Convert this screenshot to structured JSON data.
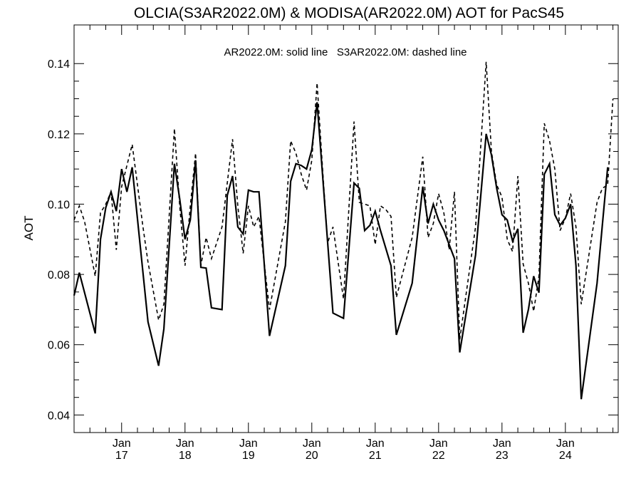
{
  "chart_data": {
    "type": "line",
    "title": "OLCIA(S3AR2022.0M) & MODISA(AR2022.0M)  AOT for PacS45",
    "annotation": "AR2022.0M: solid line   S3AR2022.0M: dashed line",
    "xlabel": "",
    "ylabel": "AOT",
    "ylim": [
      0.035,
      0.151
    ],
    "xlim": [
      "2016-04",
      "2024-11"
    ],
    "y_ticks": [
      "0.04",
      "0.06",
      "0.08",
      "0.10",
      "0.12",
      "0.14"
    ],
    "x_ticks": [
      {
        "top": "Jan",
        "bottom": "17"
      },
      {
        "top": "Jan",
        "bottom": "18"
      },
      {
        "top": "Jan",
        "bottom": "19"
      },
      {
        "top": "Jan",
        "bottom": "20"
      },
      {
        "top": "Jan",
        "bottom": "21"
      },
      {
        "top": "Jan",
        "bottom": "22"
      },
      {
        "top": "Jan",
        "bottom": "23"
      },
      {
        "top": "Jan",
        "bottom": "24"
      }
    ],
    "grid": false,
    "series": [
      {
        "name": "AR2022.0M",
        "style": "solid",
        "color": "#000000",
        "points": [
          [
            "2016-04",
            0.074
          ],
          [
            "2016-05",
            0.0805
          ],
          [
            "2016-08",
            0.0632
          ],
          [
            "2016-09",
            0.09
          ],
          [
            "2016-10",
            0.099
          ],
          [
            "2016-11",
            0.1035
          ],
          [
            "2016-12",
            0.098
          ],
          [
            "2017-01",
            0.11
          ],
          [
            "2017-02",
            0.1035
          ],
          [
            "2017-03",
            0.1105
          ],
          [
            "2017-06",
            0.0665
          ],
          [
            "2017-08",
            0.054
          ],
          [
            "2017-09",
            0.0645
          ],
          [
            "2017-11",
            0.1115
          ],
          [
            "2017-12",
            0.1015
          ],
          [
            "2018-01",
            0.09
          ],
          [
            "2018-02",
            0.0955
          ],
          [
            "2018-03",
            0.1125
          ],
          [
            "2018-04",
            0.082
          ],
          [
            "2018-05",
            0.0818
          ],
          [
            "2018-06",
            0.0705
          ],
          [
            "2018-08",
            0.07
          ],
          [
            "2018-09",
            0.1025
          ],
          [
            "2018-10",
            0.108
          ],
          [
            "2018-11",
            0.0935
          ],
          [
            "2018-12",
            0.0915
          ],
          [
            "2019-01",
            0.104
          ],
          [
            "2019-02",
            0.1035
          ],
          [
            "2019-03",
            0.1035
          ],
          [
            "2019-05",
            0.0625
          ],
          [
            "2019-08",
            0.0825
          ],
          [
            "2019-09",
            0.1065
          ],
          [
            "2019-10",
            0.1115
          ],
          [
            "2019-11",
            0.111
          ],
          [
            "2019-12",
            0.11
          ],
          [
            "2020-01",
            0.1155
          ],
          [
            "2020-02",
            0.129
          ],
          [
            "2020-05",
            0.069
          ],
          [
            "2020-07",
            0.0675
          ],
          [
            "2020-09",
            0.106
          ],
          [
            "2020-10",
            0.1045
          ],
          [
            "2020-11",
            0.0925
          ],
          [
            "2020-12",
            0.094
          ],
          [
            "2021-01",
            0.098
          ],
          [
            "2021-02",
            0.0925
          ],
          [
            "2021-04",
            0.0825
          ],
          [
            "2021-05",
            0.0628
          ],
          [
            "2021-08",
            0.0775
          ],
          [
            "2021-10",
            0.105
          ],
          [
            "2021-11",
            0.0945
          ],
          [
            "2021-12",
            0.1
          ],
          [
            "2022-01",
            0.0955
          ],
          [
            "2022-02",
            0.0925
          ],
          [
            "2022-04",
            0.0845
          ],
          [
            "2022-05",
            0.0578
          ],
          [
            "2022-08",
            0.0855
          ],
          [
            "2022-10",
            0.12
          ],
          [
            "2022-11",
            0.114
          ],
          [
            "2022-12",
            0.1045
          ],
          [
            "2023-01",
            0.097
          ],
          [
            "2023-02",
            0.0955
          ],
          [
            "2023-03",
            0.0895
          ],
          [
            "2023-04",
            0.093
          ],
          [
            "2023-05",
            0.0634
          ],
          [
            "2023-06",
            0.07
          ],
          [
            "2023-07",
            0.0795
          ],
          [
            "2023-08",
            0.0748
          ],
          [
            "2023-09",
            0.1085
          ],
          [
            "2023-10",
            0.1115
          ],
          [
            "2023-11",
            0.097
          ],
          [
            "2023-12",
            0.094
          ],
          [
            "2024-01",
            0.096
          ],
          [
            "2024-02",
            0.1
          ],
          [
            "2024-03",
            0.0825
          ],
          [
            "2024-04",
            0.0445
          ],
          [
            "2024-07",
            0.0775
          ],
          [
            "2024-08",
            0.094
          ],
          [
            "2024-09",
            0.1105
          ]
        ]
      },
      {
        "name": "S3AR2022.0M",
        "style": "dashed",
        "color": "#000000",
        "points": [
          [
            "2016-04",
            0.0955
          ],
          [
            "2016-05",
            0.0995
          ],
          [
            "2016-06",
            0.095
          ],
          [
            "2016-08",
            0.0795
          ],
          [
            "2016-09",
            0.0975
          ],
          [
            "2016-10",
            0.1
          ],
          [
            "2016-11",
            0.1035
          ],
          [
            "2016-12",
            0.087
          ],
          [
            "2017-01",
            0.105
          ],
          [
            "2017-03",
            0.117
          ],
          [
            "2017-05",
            0.094
          ],
          [
            "2017-06",
            0.0835
          ],
          [
            "2017-08",
            0.067
          ],
          [
            "2017-09",
            0.0715
          ],
          [
            "2017-11",
            0.1215
          ],
          [
            "2017-12",
            0.0995
          ],
          [
            "2018-01",
            0.0825
          ],
          [
            "2018-02",
            0.0995
          ],
          [
            "2018-03",
            0.1145
          ],
          [
            "2018-04",
            0.0825
          ],
          [
            "2018-05",
            0.0905
          ],
          [
            "2018-06",
            0.0845
          ],
          [
            "2018-08",
            0.0935
          ],
          [
            "2018-10",
            0.1185
          ],
          [
            "2018-11",
            0.0995
          ],
          [
            "2018-12",
            0.086
          ],
          [
            "2019-01",
            0.0995
          ],
          [
            "2019-02",
            0.0935
          ],
          [
            "2019-03",
            0.0965
          ],
          [
            "2019-05",
            0.07
          ],
          [
            "2019-08",
            0.095
          ],
          [
            "2019-09",
            0.118
          ],
          [
            "2019-10",
            0.1145
          ],
          [
            "2019-11",
            0.1085
          ],
          [
            "2019-12",
            0.104
          ],
          [
            "2020-01",
            0.1125
          ],
          [
            "2020-02",
            0.1345
          ],
          [
            "2020-03",
            0.111
          ],
          [
            "2020-04",
            0.089
          ],
          [
            "2020-05",
            0.0935
          ],
          [
            "2020-07",
            0.073
          ],
          [
            "2020-09",
            0.1235
          ],
          [
            "2020-10",
            0.1005
          ],
          [
            "2020-11",
            0.1
          ],
          [
            "2020-12",
            0.0995
          ],
          [
            "2021-01",
            0.0885
          ],
          [
            "2021-02",
            0.0995
          ],
          [
            "2021-03",
            0.0985
          ],
          [
            "2021-04",
            0.0965
          ],
          [
            "2021-05",
            0.0735
          ],
          [
            "2021-08",
            0.0905
          ],
          [
            "2021-10",
            0.1135
          ],
          [
            "2021-11",
            0.0905
          ],
          [
            "2021-12",
            0.0945
          ],
          [
            "2022-01",
            0.103
          ],
          [
            "2022-02",
            0.0975
          ],
          [
            "2022-03",
            0.087
          ],
          [
            "2022-04",
            0.1035
          ],
          [
            "2022-05",
            0.0615
          ],
          [
            "2022-08",
            0.0935
          ],
          [
            "2022-10",
            0.1405
          ],
          [
            "2022-11",
            0.115
          ],
          [
            "2022-12",
            0.1055
          ],
          [
            "2023-01",
            0.102
          ],
          [
            "2023-02",
            0.09
          ],
          [
            "2023-03",
            0.0865
          ],
          [
            "2023-04",
            0.108
          ],
          [
            "2023-05",
            0.083
          ],
          [
            "2023-06",
            0.0775
          ],
          [
            "2023-07",
            0.0695
          ],
          [
            "2023-08",
            0.0795
          ],
          [
            "2023-09",
            0.123
          ],
          [
            "2023-10",
            0.118
          ],
          [
            "2023-11",
            0.11
          ],
          [
            "2023-12",
            0.0925
          ],
          [
            "2024-01",
            0.096
          ],
          [
            "2024-02",
            0.103
          ],
          [
            "2024-03",
            0.0935
          ],
          [
            "2024-04",
            0.0715
          ],
          [
            "2024-07",
            0.1005
          ],
          [
            "2024-08",
            0.1045
          ],
          [
            "2024-09",
            0.1055
          ],
          [
            "2024-10",
            0.13
          ]
        ]
      }
    ]
  }
}
